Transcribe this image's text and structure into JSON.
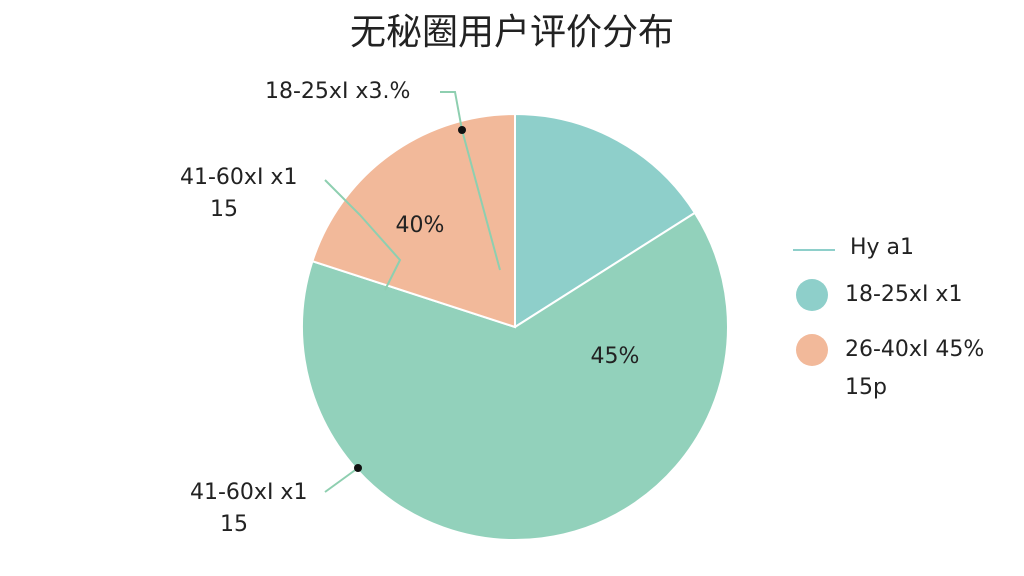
{
  "chart_data": {
    "type": "pie",
    "title": "无秘圈用户评价分布",
    "values": [
      16,
      64,
      20
    ],
    "colors": [
      "#8ecfca",
      "#92d1bb",
      "#f2b99a"
    ],
    "annotations": [
      {
        "text": "40%"
      },
      {
        "text": "45%"
      }
    ],
    "callouts": [
      {
        "lines": [
          "18-25xI x3.%"
        ]
      },
      {
        "lines": [
          "41-60xI x1",
          "15"
        ]
      },
      {
        "lines": [
          "41-60xI x1",
          "15"
        ]
      }
    ],
    "legend": {
      "title": "Hy a1",
      "entries": [
        {
          "lines": [
            "18-25xI x1"
          ],
          "color": "#8ecfca"
        },
        {
          "lines": [
            "26-40xI 45%",
            "15p"
          ],
          "color": "#f2b99a"
        }
      ]
    }
  }
}
